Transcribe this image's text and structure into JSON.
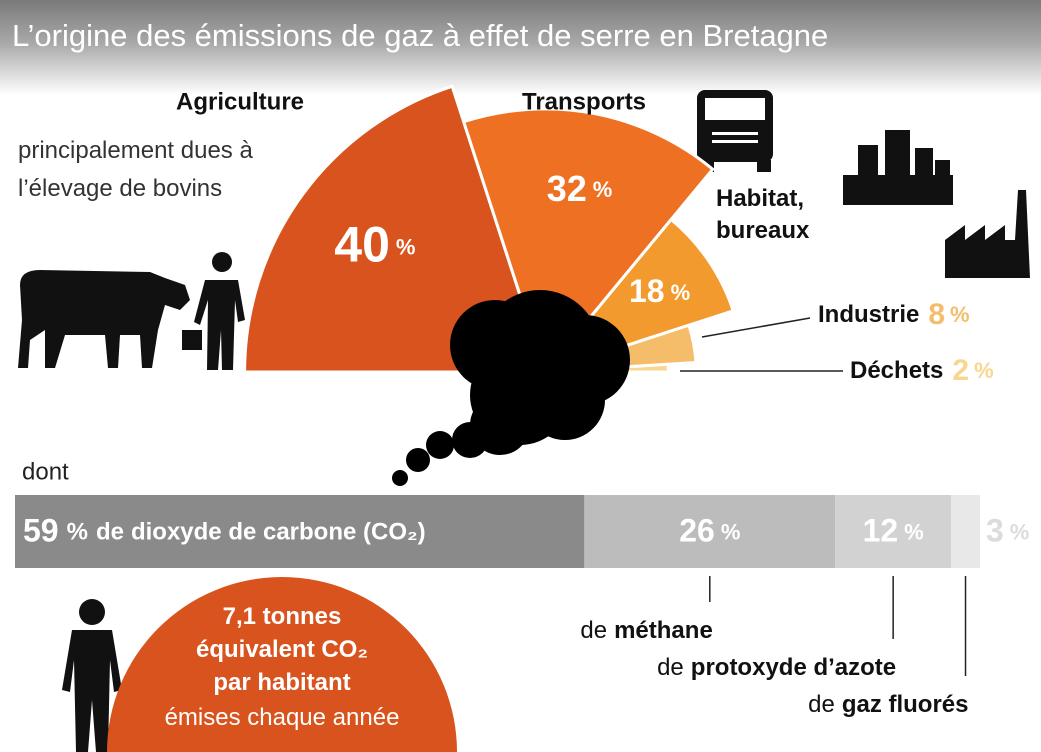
{
  "chart_data": [
    {
      "type": "rose",
      "title": "L’origine des émissions de gaz à effet de serre en Bretagne",
      "unit": "%",
      "categories": [
        "Agriculture",
        "Transports",
        "Habitat, bureaux",
        "Industrie",
        "Déchets"
      ],
      "values": [
        40,
        32,
        18,
        8,
        2
      ],
      "colors": [
        "#d9531e",
        "#ee7023",
        "#f39a2e",
        "#f5bd6a",
        "#f8d690"
      ],
      "annotation": "principalement dues à l’élevage de bovins"
    },
    {
      "type": "stacked-bar",
      "intro": "dont",
      "unit": "%",
      "prefix": "de",
      "categories": [
        "dioxyde de carbone (CO₂)",
        "méthane",
        "protoxyde d’azote",
        "gaz fluorés"
      ],
      "values": [
        59,
        26,
        12,
        3
      ],
      "colors": [
        "#8a8a8a",
        "#bcbcbc",
        "#d2d2d2",
        "#e8e8e8"
      ],
      "xlim": [
        0,
        100
      ]
    }
  ],
  "per_capita": {
    "headline": "7,1 tonnes équivalent CO₂ par habitant",
    "caption": "émises chaque année"
  }
}
